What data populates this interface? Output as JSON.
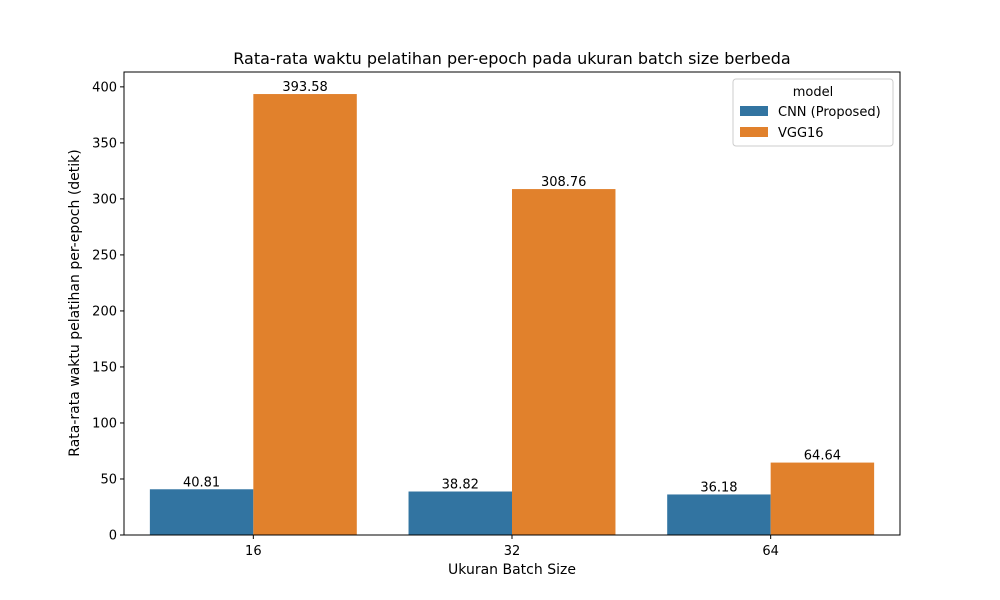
{
  "chart_data": {
    "type": "bar",
    "title": "Rata-rata waktu pelatihan per-epoch pada ukuran batch size berbeda",
    "xlabel": "Ukuran Batch Size",
    "ylabel": "Rata-rata waktu pelatihan per-epoch (detik)",
    "categories": [
      "16",
      "32",
      "64"
    ],
    "series": [
      {
        "name": "CNN (Proposed)",
        "color": "#3274a1",
        "values": [
          40.81,
          38.82,
          36.18
        ],
        "labels": [
          "40.81",
          "38.82",
          "36.18"
        ]
      },
      {
        "name": "VGG16",
        "color": "#e1812c",
        "values": [
          393.58,
          308.76,
          64.64
        ],
        "labels": [
          "393.58",
          "308.76",
          "64.64"
        ]
      }
    ],
    "ylim": [
      0,
      413.26
    ],
    "yticks": [
      0,
      50,
      100,
      150,
      200,
      250,
      300,
      350,
      400
    ],
    "ytick_labels": [
      "0",
      "50",
      "100",
      "150",
      "200",
      "250",
      "300",
      "350",
      "400"
    ],
    "grid": false,
    "legend": {
      "title": "model",
      "placement": "top-right"
    }
  }
}
